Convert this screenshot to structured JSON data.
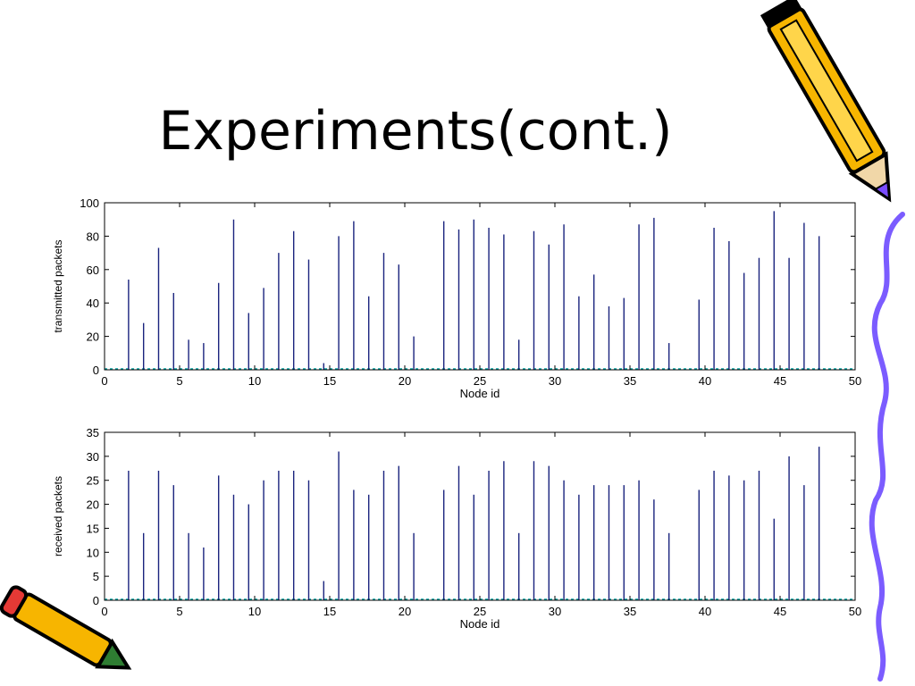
{
  "slide": {
    "title": "Experiments(cont.)"
  },
  "colors": {
    "stem": "#1a237e",
    "frame": "#000000",
    "baseline": "#00a0a0"
  },
  "decor": {
    "pencil_top_right": "pencil-icon",
    "pencil_bottom_left": "pencil-icon",
    "squiggle": "purple-squiggle-line"
  },
  "chart_data": [
    {
      "type": "bar",
      "style": "stem",
      "xlabel": "Node id",
      "ylabel": "transmitted packets",
      "xlim": [
        0,
        50
      ],
      "ylim": [
        0,
        100
      ],
      "xticks": [
        0,
        5,
        10,
        15,
        20,
        25,
        30,
        35,
        40,
        45,
        50
      ],
      "yticks": [
        0,
        20,
        40,
        60,
        80,
        100
      ],
      "x": [
        1.6,
        2.6,
        3.6,
        4.6,
        5.6,
        6.6,
        7.6,
        8.6,
        9.6,
        10.6,
        11.6,
        12.6,
        13.6,
        14.6,
        15.6,
        16.6,
        17.6,
        18.6,
        19.6,
        20.6,
        22.6,
        23.6,
        24.6,
        25.6,
        26.6,
        27.6,
        28.6,
        29.6,
        30.6,
        31.6,
        32.6,
        33.6,
        34.6,
        35.6,
        36.6,
        37.6,
        39.6,
        40.6,
        41.6,
        42.6,
        43.6,
        44.6,
        45.6,
        46.6,
        47.6
      ],
      "values": [
        54,
        28,
        73,
        46,
        18,
        16,
        52,
        90,
        34,
        49,
        70,
        83,
        66,
        4,
        80,
        89,
        44,
        70,
        63,
        20,
        89,
        84,
        90,
        85,
        81,
        18,
        83,
        75,
        87,
        44,
        57,
        38,
        43,
        87,
        91,
        16,
        42,
        85,
        77,
        58,
        67,
        95,
        67,
        88,
        80
      ]
    },
    {
      "type": "bar",
      "style": "stem",
      "xlabel": "Node id",
      "ylabel": "received packets",
      "xlim": [
        0,
        50
      ],
      "ylim": [
        0,
        35
      ],
      "xticks": [
        0,
        5,
        10,
        15,
        20,
        25,
        30,
        35,
        40,
        45,
        50
      ],
      "yticks": [
        0,
        5,
        10,
        15,
        20,
        25,
        30,
        35
      ],
      "x": [
        1.6,
        2.6,
        3.6,
        4.6,
        5.6,
        6.6,
        7.6,
        8.6,
        9.6,
        10.6,
        11.6,
        12.6,
        13.6,
        14.6,
        15.6,
        16.6,
        17.6,
        18.6,
        19.6,
        20.6,
        22.6,
        23.6,
        24.6,
        25.6,
        26.6,
        27.6,
        28.6,
        29.6,
        30.6,
        31.6,
        32.6,
        33.6,
        34.6,
        35.6,
        36.6,
        37.6,
        39.6,
        40.6,
        41.6,
        42.6,
        43.6,
        44.6,
        45.6,
        46.6,
        47.6
      ],
      "values": [
        27,
        14,
        27,
        24,
        14,
        11,
        26,
        22,
        20,
        25,
        27,
        27,
        25,
        4,
        31,
        23,
        22,
        27,
        28,
        14,
        23,
        28,
        22,
        27,
        29,
        14,
        29,
        28,
        25,
        22,
        24,
        24,
        24,
        25,
        21,
        14,
        23,
        27,
        26,
        25,
        27,
        17,
        30,
        24,
        32
      ]
    }
  ]
}
